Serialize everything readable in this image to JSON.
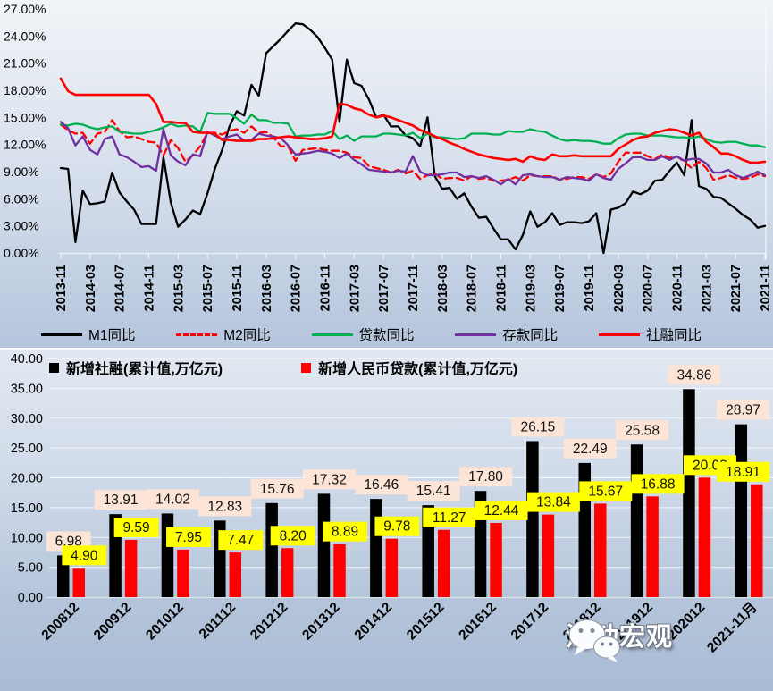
{
  "chart_data": [
    {
      "type": "line",
      "title": "",
      "ylim": [
        0,
        27
      ],
      "grid": false,
      "legend_position": "bottom",
      "y_ticks": [
        "27.00%",
        "24.00%",
        "21.00%",
        "18.00%",
        "15.00%",
        "12.00%",
        "9.00%",
        "6.00%",
        "3.00%",
        "0.00%"
      ],
      "x_start": "2013-11",
      "x_end": "2021-11",
      "x_freq": "monthly",
      "x_tick_labels": [
        "2013-11",
        "2014-03",
        "2014-07",
        "2014-11",
        "2015-03",
        "2015-07",
        "2015-11",
        "2016-03",
        "2016-07",
        "2016-11",
        "2017-03",
        "2017-07",
        "2017-11",
        "2018-03",
        "2018-07",
        "2018-11",
        "2019-03",
        "2019-07",
        "2019-11",
        "2020-03",
        "2020-07",
        "2020-11",
        "2021-03",
        "2021-07",
        "2021-11"
      ],
      "series": [
        {
          "id": "m1",
          "name": "M1同比",
          "color": "#000000",
          "style": "solid",
          "values": [
            9.4,
            9.3,
            1.2,
            6.9,
            5.4,
            5.5,
            5.7,
            8.9,
            6.7,
            5.7,
            4.8,
            3.2,
            3.2,
            3.2,
            10.6,
            5.6,
            2.9,
            3.7,
            4.7,
            4.3,
            6.6,
            9.3,
            11.4,
            14,
            15.7,
            15.2,
            18.6,
            17.4,
            22.1,
            22.9,
            23.7,
            24.6,
            25.4,
            25.3,
            24.7,
            23.9,
            22.7,
            21.4,
            14.5,
            21.4,
            18.8,
            18.5,
            17,
            15,
            15.3,
            14,
            14,
            13,
            12.7,
            11.8,
            15,
            8.5,
            7.1,
            7.2,
            6,
            6.6,
            5.1,
            3.9,
            4,
            2.7,
            1.5,
            1.5,
            0.4,
            2,
            4.6,
            2.9,
            3.4,
            4.4,
            3.1,
            3.4,
            3.4,
            3.3,
            3.5,
            4.4,
            0,
            4.8,
            5,
            5.5,
            6.8,
            6.5,
            6.9,
            8,
            8.1,
            9.1,
            10,
            8.6,
            14.7,
            7.4,
            7.1,
            6.2,
            6.1,
            5.5,
            4.9,
            4.2,
            3.7,
            2.8,
            3
          ]
        },
        {
          "id": "m2",
          "name": "M2同比",
          "color": "#FF0000",
          "style": "dashed",
          "values": [
            14.2,
            13.6,
            13.2,
            13.3,
            12.1,
            13.2,
            13.4,
            14.7,
            13.5,
            12.8,
            12.9,
            12.6,
            12.3,
            12.2,
            10.8,
            12.5,
            11.6,
            10.1,
            10.8,
            11.8,
            13.3,
            13.3,
            13.1,
            13.5,
            13.7,
            13.3,
            14,
            13.3,
            13.4,
            12.8,
            11.8,
            11.8,
            10.2,
            11.4,
            11.5,
            11.6,
            11.4,
            11.3,
            11.3,
            11.1,
            10.6,
            10.5,
            9.6,
            9.4,
            9.2,
            8.9,
            9.2,
            8.8,
            9.1,
            8.2,
            8.6,
            8.8,
            8.2,
            8.3,
            8.3,
            8,
            8.5,
            8.2,
            8.3,
            8,
            8,
            8.1,
            8.4,
            8,
            8.6,
            8.5,
            8.5,
            8.5,
            8.1,
            8.2,
            8.4,
            8.4,
            8.2,
            8.7,
            8.4,
            8.8,
            10.1,
            11.1,
            11.1,
            11.1,
            10.7,
            10.4,
            10.9,
            10.5,
            10.7,
            10.1,
            9.4,
            10.1,
            9.4,
            8.1,
            8.3,
            8.6,
            8.3,
            8.2,
            8.3,
            8.7,
            8.5
          ]
        },
        {
          "id": "loan",
          "name": "贷款同比",
          "color": "#00B050",
          "style": "solid",
          "values": [
            14.2,
            14.1,
            14.3,
            14.2,
            13.9,
            13.7,
            13.9,
            14,
            13.4,
            13.3,
            13.2,
            13.2,
            13.4,
            13.6,
            13.9,
            14.3,
            14,
            14.1,
            14,
            13.4,
            15.5,
            15.4,
            15.4,
            15.4,
            14.9,
            14.3,
            15.3,
            14.7,
            14.7,
            14.4,
            14.4,
            14.3,
            12.9,
            13,
            13,
            13.1,
            13.1,
            13.5,
            12.6,
            13,
            12.4,
            12.9,
            12.9,
            12.9,
            13.2,
            13.2,
            13.1,
            13,
            13.3,
            12.7,
            13.2,
            12.8,
            12.8,
            12.7,
            12.6,
            12.7,
            13.2,
            13.2,
            13.2,
            13.1,
            13.1,
            13.5,
            13.4,
            13.4,
            13.7,
            13.5,
            13.4,
            13,
            12.6,
            12.4,
            12.5,
            12.4,
            12.4,
            12.3,
            12.1,
            12.1,
            12.7,
            13.1,
            13.2,
            13.2,
            13,
            13,
            13,
            12.9,
            12.8,
            12.8,
            12.7,
            12.9,
            12.6,
            12.3,
            12.2,
            12.3,
            12.3,
            12.1,
            11.9,
            11.9,
            11.7
          ]
        },
        {
          "id": "deposit",
          "name": "存款同比",
          "color": "#7030A0",
          "style": "solid",
          "values": [
            14.5,
            13.8,
            11.9,
            12.9,
            11.4,
            10.9,
            12.6,
            12.9,
            10.9,
            10.6,
            10.1,
            9.5,
            9.6,
            9.1,
            13.7,
            10.8,
            10.1,
            9.7,
            10.9,
            10.7,
            13.4,
            13,
            12.6,
            12.9,
            13.1,
            12.4,
            12.5,
            13.2,
            13,
            12.9,
            12.7,
            11.9,
            10.9,
            11,
            11.1,
            11.3,
            11.2,
            11,
            10.5,
            11,
            10.3,
            9.8,
            9.2,
            9.1,
            9,
            8.9,
            9.1,
            9,
            10.7,
            9,
            8.6,
            8.6,
            8.7,
            8.9,
            8.9,
            8.4,
            8.5,
            8.3,
            8.5,
            8.1,
            7.6,
            8.2,
            7.6,
            8.6,
            8.7,
            8.5,
            8.4,
            8.4,
            8.1,
            8.4,
            8.3,
            8.2,
            8,
            8.7,
            8.3,
            8.1,
            9.3,
            9.9,
            10.6,
            10.6,
            10.3,
            10.3,
            10.7,
            10.3,
            10.7,
            10.2,
            10.4,
            10.4,
            9.9,
            8.9,
            8.9,
            9.2,
            8.6,
            8.3,
            8.6,
            9,
            8.6
          ]
        },
        {
          "id": "tsf",
          "name": "社融同比",
          "color": "#FF0000",
          "style": "solid",
          "values": [
            19.3,
            17.9,
            17.5,
            17.5,
            17.5,
            17.5,
            17.5,
            17.5,
            17.5,
            17.5,
            17.5,
            17.5,
            17.5,
            16.5,
            14.5,
            14.5,
            14.4,
            14.4,
            13.4,
            13.3,
            13.3,
            13.2,
            12.5,
            12.5,
            12.4,
            12.4,
            12.4,
            12.6,
            12.6,
            12.7,
            12.8,
            12.9,
            12.8,
            12.7,
            12.6,
            12.6,
            12.7,
            12.9,
            16.5,
            16.4,
            16,
            15.8,
            15.3,
            15,
            15.2,
            15,
            14.7,
            14.4,
            14.1,
            13.6,
            13.3,
            12.9,
            12.6,
            12.2,
            11.9,
            11.5,
            11.2,
            10.9,
            10.7,
            10.5,
            10.4,
            10.3,
            10.4,
            10.1,
            10.7,
            10.4,
            10.3,
            10.9,
            10.7,
            10.7,
            10.8,
            10.7,
            10.7,
            10.7,
            10.7,
            10.7,
            11.5,
            12,
            12.5,
            12.8,
            12.9,
            13.3,
            13.5,
            13.7,
            13.6,
            13.3,
            13,
            13.3,
            12.3,
            11.7,
            11,
            11,
            10.7,
            10.3,
            10,
            10,
            10.1
          ]
        }
      ]
    },
    {
      "type": "bar",
      "title": "",
      "ylim": [
        0,
        40
      ],
      "grid": true,
      "legend_position": "top",
      "y_ticks": [
        "40.00",
        "35.00",
        "30.00",
        "25.00",
        "20.00",
        "15.00",
        "10.00",
        "5.00",
        "0.00"
      ],
      "categories": [
        "200812",
        "200912",
        "201012",
        "201112",
        "201212",
        "201312",
        "201412",
        "201512",
        "201612",
        "201712",
        "201812",
        "201912",
        "202012",
        "2021-11月"
      ],
      "series": [
        {
          "id": "new-tsf",
          "name": "新增社融(累计值,万亿元)",
          "color": "#000000",
          "label_bg": "#FCE4D6",
          "values": [
            6.98,
            13.91,
            14.02,
            12.83,
            15.76,
            17.32,
            16.46,
            15.41,
            17.8,
            26.15,
            22.49,
            25.58,
            34.86,
            28.97
          ]
        },
        {
          "id": "new-loan",
          "name": "新增人民币贷款(累计值,万亿元)",
          "color": "#FF0000",
          "label_bg": "#FFFF00",
          "values": [
            4.9,
            9.59,
            7.95,
            7.47,
            8.2,
            8.89,
            9.78,
            11.27,
            12.44,
            13.84,
            15.67,
            16.88,
            20.03,
            18.91
          ]
        }
      ]
    }
  ],
  "watermark": {
    "text": "涛动宏观",
    "icon": "wechat-icon"
  }
}
